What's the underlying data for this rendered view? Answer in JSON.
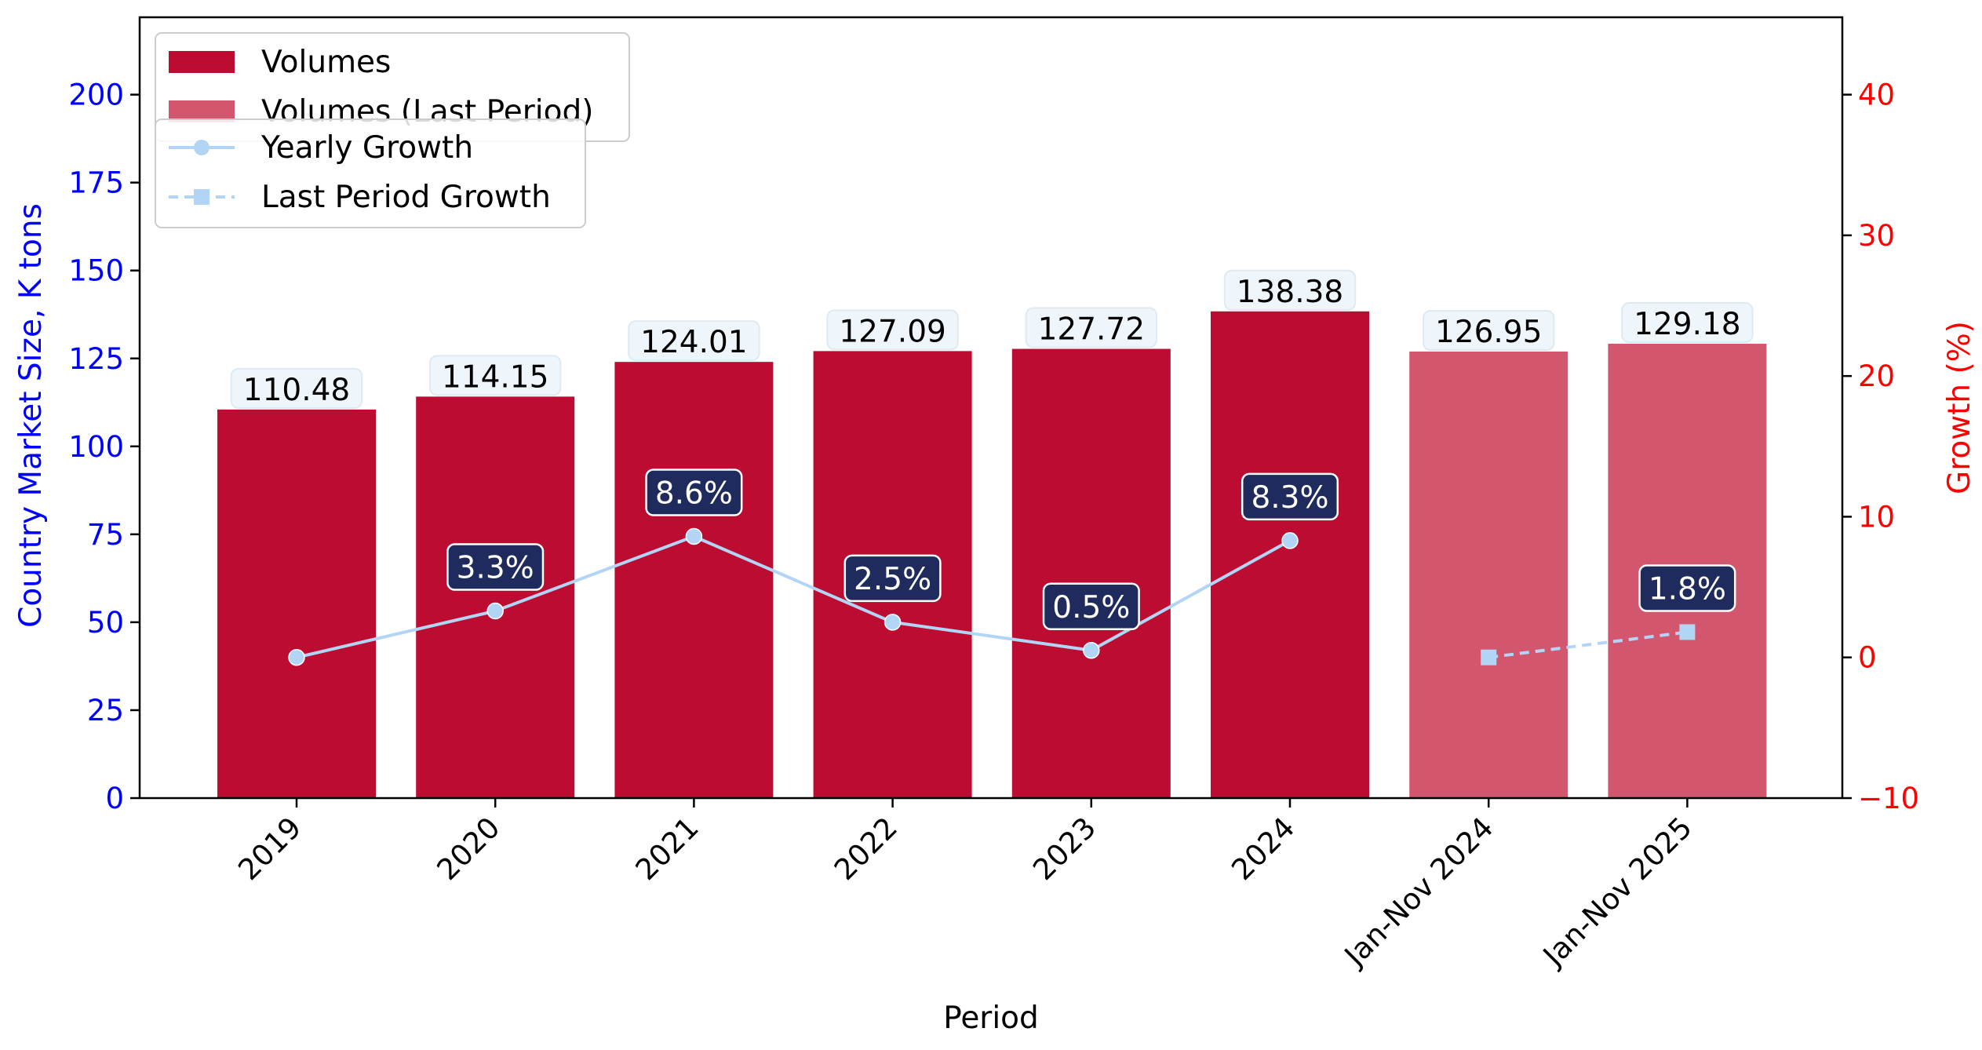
{
  "chart_data": {
    "type": "bar",
    "categories": [
      "2019",
      "2020",
      "2021",
      "2022",
      "2023",
      "2024",
      "Jan-Nov 2024",
      "Jan-Nov 2025"
    ],
    "series": [
      {
        "name": "Volumes",
        "kind": "bar",
        "color": "#bc0c32",
        "values": [
          110.48,
          114.15,
          124.01,
          127.09,
          127.72,
          138.38,
          null,
          null
        ],
        "labels": [
          "110.48",
          "114.15",
          "124.01",
          "127.09",
          "127.72",
          "138.38",
          null,
          null
        ]
      },
      {
        "name": "Volumes (Last Period)",
        "kind": "bar",
        "color": "#d2566e",
        "values": [
          null,
          null,
          null,
          null,
          null,
          null,
          126.95,
          129.18
        ],
        "labels": [
          null,
          null,
          null,
          null,
          null,
          null,
          "126.95",
          "129.18"
        ]
      },
      {
        "name": "Yearly Growth",
        "kind": "line",
        "axis": "right",
        "marker": "circle",
        "linestyle": "solid",
        "color": "#b3d5f5",
        "values": [
          0.0,
          3.3,
          8.6,
          2.5,
          0.5,
          8.3,
          null,
          null
        ],
        "labels": [
          null,
          "3.3%",
          "8.6%",
          "2.5%",
          "0.5%",
          "8.3%",
          null,
          null
        ]
      },
      {
        "name": "Last Period Growth",
        "kind": "line",
        "axis": "right",
        "marker": "square",
        "linestyle": "dashed",
        "color": "#b3d5f5",
        "values": [
          null,
          null,
          null,
          null,
          null,
          null,
          0.0,
          1.8
        ],
        "labels": [
          null,
          null,
          null,
          null,
          null,
          null,
          null,
          "1.8%"
        ]
      }
    ],
    "xlabel": "Period",
    "ylabel": "Country Market Size, K tons",
    "ylabel_right": "Growth (%)",
    "ylim": [
      0,
      222
    ],
    "ylim_right": [
      -10,
      45.5
    ],
    "yticks": [
      0,
      25,
      50,
      75,
      100,
      125,
      150,
      175,
      200
    ],
    "yticks_right": [
      -10,
      0,
      10,
      20,
      30,
      40
    ],
    "ylabel_color": "#0000ff",
    "ylabel_right_color": "#ff0000",
    "growth_label_bg": "#1f2b5c",
    "bar_label_bg": "#eef6fc",
    "grid": false,
    "legend_placement": "upper-left"
  }
}
